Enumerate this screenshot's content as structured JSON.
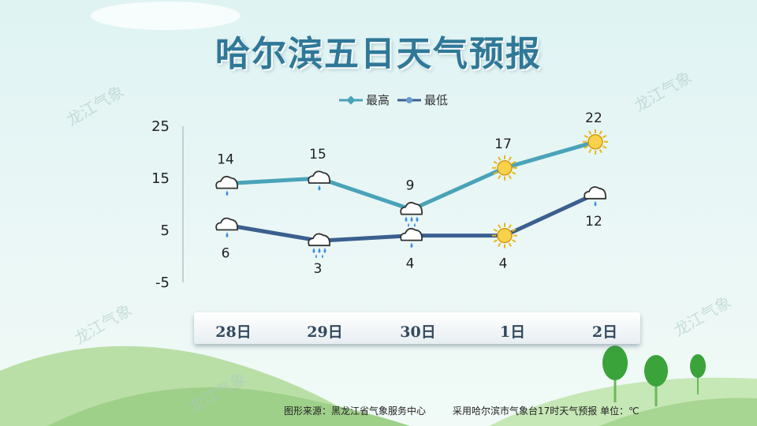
{
  "title": "哈尔滨五日天气预报",
  "watermark": "龙江气象",
  "legend": {
    "high": "最高",
    "low": "最低"
  },
  "footer": {
    "source": "图形来源：黑龙江省气象服务中心",
    "note": "采用哈尔滨市气象台17时天气预报 单位：℃"
  },
  "colors": {
    "high": "#4aa3b8",
    "low": "#3b5f8f",
    "title": "#2f7898"
  },
  "chart_data": {
    "type": "line",
    "categories": [
      "28日",
      "29日",
      "30日",
      "1日",
      "2日"
    ],
    "ylim": [
      -5,
      25
    ],
    "yticks": [
      "25",
      "15",
      "5",
      "-5"
    ],
    "series": [
      {
        "name": "最高",
        "values": [
          14,
          15,
          9,
          17,
          22
        ],
        "labels": [
          "14",
          "15",
          "9",
          "17",
          "22"
        ],
        "icons": [
          "rain-cloud-icon",
          "rain-cloud-icon",
          "heavy-rain-cloud-icon",
          "sun-icon",
          "sun-icon"
        ]
      },
      {
        "name": "最低",
        "values": [
          6,
          3,
          4,
          4,
          12
        ],
        "labels": [
          "6",
          "3",
          "4",
          "4",
          "12"
        ],
        "icons": [
          "rain-cloud-icon",
          "heavy-rain-cloud-icon",
          "rain-cloud-icon",
          "sun-icon",
          "cloud-icon"
        ]
      }
    ]
  }
}
